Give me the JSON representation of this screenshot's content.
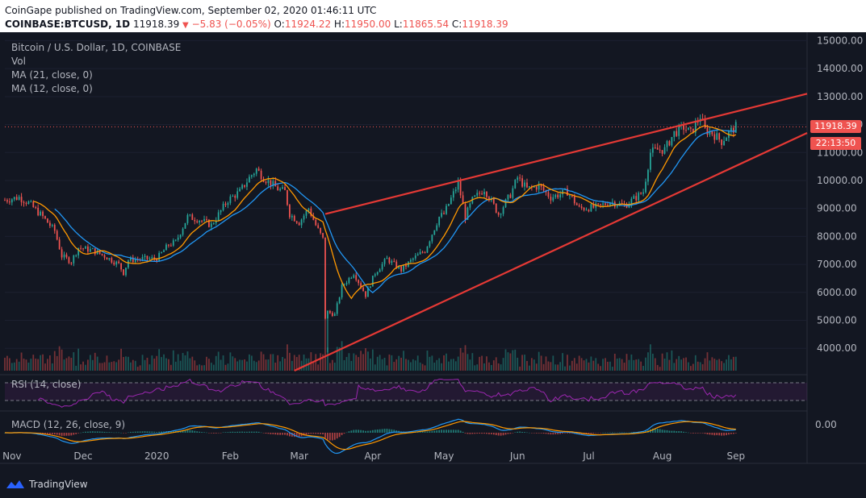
{
  "header": {
    "publisher_line": "CoinGape published on TradingView.com, September 02, 2020 01:46:11 UTC",
    "symbol": "COINBASE:BTCUSD, 1D",
    "close_value": "11918.39",
    "change": "−5.83 (−0.05%)",
    "open_label": "O:",
    "open": "11924.22",
    "high_label": "H:",
    "high": "11950.00",
    "low_label": "L:",
    "low": "11865.54",
    "close_label": "C:",
    "close": "11918.39"
  },
  "legend": {
    "title": "Bitcoin / U.S. Dollar, 1D, COINBASE",
    "vol": "Vol",
    "ma21": "MA (21, close, 0)",
    "ma12": "MA (12, close, 0)"
  },
  "indicators": {
    "rsi_label": "RSI (14, close)",
    "macd_label": "MACD (12, 26, close, 9)",
    "macd_zero": "0.00"
  },
  "price_tags": {
    "last_price": "11918.39",
    "countdown": "22:13:50"
  },
  "footer": {
    "brand": "TradingView"
  },
  "colors": {
    "background": "#131722",
    "up": "#26a69a",
    "down": "#ef5350",
    "ma21": "#2196f3",
    "ma12": "#ff9800",
    "trendline": "#e53935",
    "rsi": "#9c27b0"
  },
  "chart_data": {
    "type": "candlestick",
    "y_ticks": [
      "15000.00",
      "14000.00",
      "13000.00",
      "12000.00",
      "11000.00",
      "10000.00",
      "9000.00",
      "8000.00",
      "7000.00",
      "6000.00",
      "5000.00",
      "4000.00"
    ],
    "ylim": [
      3200,
      15300
    ],
    "x_ticks": [
      "Nov",
      "Dec",
      "2020",
      "Feb",
      "Mar",
      "Apr",
      "May",
      "Jun",
      "Jul",
      "Aug",
      "Sep"
    ],
    "x_tick_dates": [
      "2019-11-01",
      "2019-12-01",
      "2020-01-01",
      "2020-02-01",
      "2020-03-01",
      "2020-04-01",
      "2020-05-01",
      "2020-06-01",
      "2020-07-01",
      "2020-08-01",
      "2020-09-01"
    ],
    "xlim": [
      "2019-10-29",
      "2020-10-01"
    ],
    "close_series": [
      [
        "2019-10-29",
        9300
      ],
      [
        "2019-11-04",
        9400
      ],
      [
        "2019-11-08",
        9200
      ],
      [
        "2019-11-14",
        8700
      ],
      [
        "2019-11-19",
        8200
      ],
      [
        "2019-11-22",
        7300
      ],
      [
        "2019-11-26",
        7100
      ],
      [
        "2019-11-29",
        7600
      ],
      [
        "2019-12-05",
        7500
      ],
      [
        "2019-12-10",
        7300
      ],
      [
        "2019-12-16",
        7000
      ],
      [
        "2019-12-18",
        6700
      ],
      [
        "2019-12-20",
        7150
      ],
      [
        "2019-12-26",
        7200
      ],
      [
        "2020-01-01",
        7200
      ],
      [
        "2020-01-06",
        7700
      ],
      [
        "2020-01-09",
        7800
      ],
      [
        "2020-01-14",
        8700
      ],
      [
        "2020-01-19",
        8600
      ],
      [
        "2020-01-24",
        8400
      ],
      [
        "2020-01-31",
        9300
      ],
      [
        "2020-02-05",
        9600
      ],
      [
        "2020-02-09",
        10100
      ],
      [
        "2020-02-12",
        10400
      ],
      [
        "2020-02-15",
        10100
      ],
      [
        "2020-02-18",
        9900
      ],
      [
        "2020-02-21",
        9700
      ],
      [
        "2020-02-24",
        9600
      ],
      [
        "2020-02-26",
        8800
      ],
      [
        "2020-03-01",
        8500
      ],
      [
        "2020-03-05",
        9000
      ],
      [
        "2020-03-08",
        8400
      ],
      [
        "2020-03-11",
        7900
      ],
      [
        "2020-03-12",
        5100
      ],
      [
        "2020-03-13",
        5300
      ],
      [
        "2020-03-16",
        5200
      ],
      [
        "2020-03-19",
        6200
      ],
      [
        "2020-03-24",
        6700
      ],
      [
        "2020-03-29",
        5900
      ],
      [
        "2020-04-02",
        6700
      ],
      [
        "2020-04-07",
        7200
      ],
      [
        "2020-04-13",
        6800
      ],
      [
        "2020-04-18",
        7200
      ],
      [
        "2020-04-23",
        7500
      ],
      [
        "2020-04-29",
        8700
      ],
      [
        "2020-05-01",
        8800
      ],
      [
        "2020-05-07",
        9900
      ],
      [
        "2020-05-10",
        8700
      ],
      [
        "2020-05-13",
        9300
      ],
      [
        "2020-05-18",
        9700
      ],
      [
        "2020-05-24",
        8800
      ],
      [
        "2020-05-29",
        9500
      ],
      [
        "2020-06-01",
        10100
      ],
      [
        "2020-06-05",
        9700
      ],
      [
        "2020-06-10",
        9800
      ],
      [
        "2020-06-15",
        9400
      ],
      [
        "2020-06-22",
        9600
      ],
      [
        "2020-06-27",
        9000
      ],
      [
        "2020-07-05",
        9050
      ],
      [
        "2020-07-10",
        9250
      ],
      [
        "2020-07-16",
        9100
      ],
      [
        "2020-07-21",
        9400
      ],
      [
        "2020-07-24",
        9600
      ],
      [
        "2020-07-27",
        11000
      ],
      [
        "2020-07-30",
        11100
      ],
      [
        "2020-08-02",
        11100
      ],
      [
        "2020-08-06",
        11700
      ],
      [
        "2020-08-10",
        11900
      ],
      [
        "2020-08-13",
        11700
      ],
      [
        "2020-08-17",
        12300
      ],
      [
        "2020-08-19",
        11800
      ],
      [
        "2020-08-22",
        11700
      ],
      [
        "2020-08-26",
        11400
      ],
      [
        "2020-08-29",
        11700
      ],
      [
        "2020-09-01",
        11918
      ]
    ],
    "trendlines": [
      {
        "from": [
          "2020-03-12",
          8800
        ],
        "to": [
          "2020-10-01",
          13100
        ]
      },
      {
        "from": [
          "2020-02-28",
          3200
        ],
        "to": [
          "2020-10-01",
          11700
        ]
      }
    ],
    "last_price": 11918.39
  }
}
